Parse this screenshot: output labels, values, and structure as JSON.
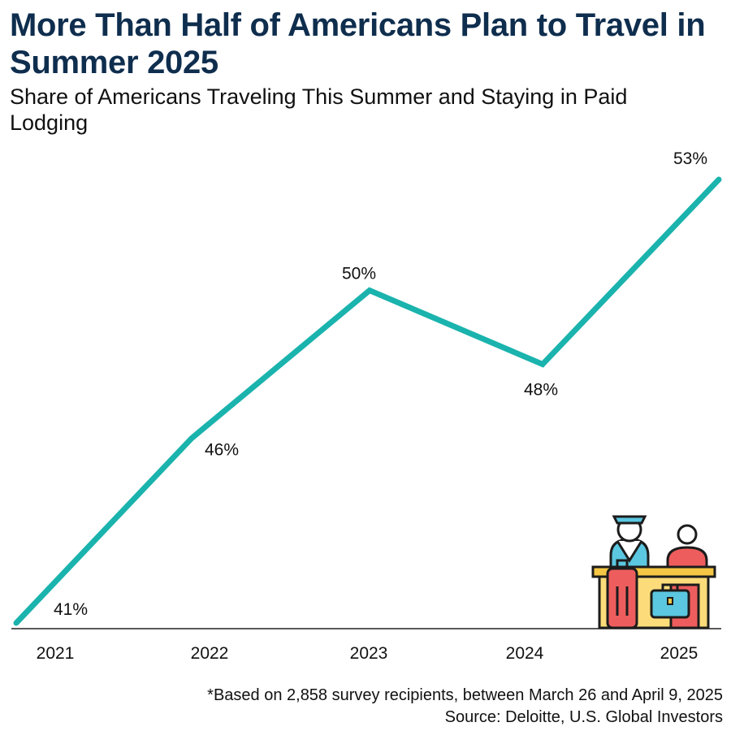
{
  "chart_data": {
    "type": "line",
    "title": "More Than Half of Americans Plan to Travel in Summer 2025",
    "subtitle": "Share of Americans Traveling This Summer and Staying in Paid Lodging",
    "categories": [
      "2021",
      "2022",
      "2023",
      "2024",
      "2025"
    ],
    "series": [
      {
        "name": "Share traveling and staying in paid lodging",
        "values": [
          41,
          46,
          50,
          48,
          53
        ],
        "unit": "%"
      }
    ],
    "data_labels": [
      "41%",
      "46%",
      "50%",
      "48%",
      "53%"
    ],
    "xlabel": "",
    "ylabel": "",
    "ylim": [
      41,
      53
    ],
    "grid": false,
    "legend": "none",
    "line_color": "#1ab3ad"
  },
  "footnote": {
    "note": "*Based on 2,858 survey recipients, between March 26 and April 9, 2025",
    "source": "Source: Deloitte, U.S. Global Investors"
  },
  "illustration": {
    "icon": "hotel-reception-icon"
  }
}
